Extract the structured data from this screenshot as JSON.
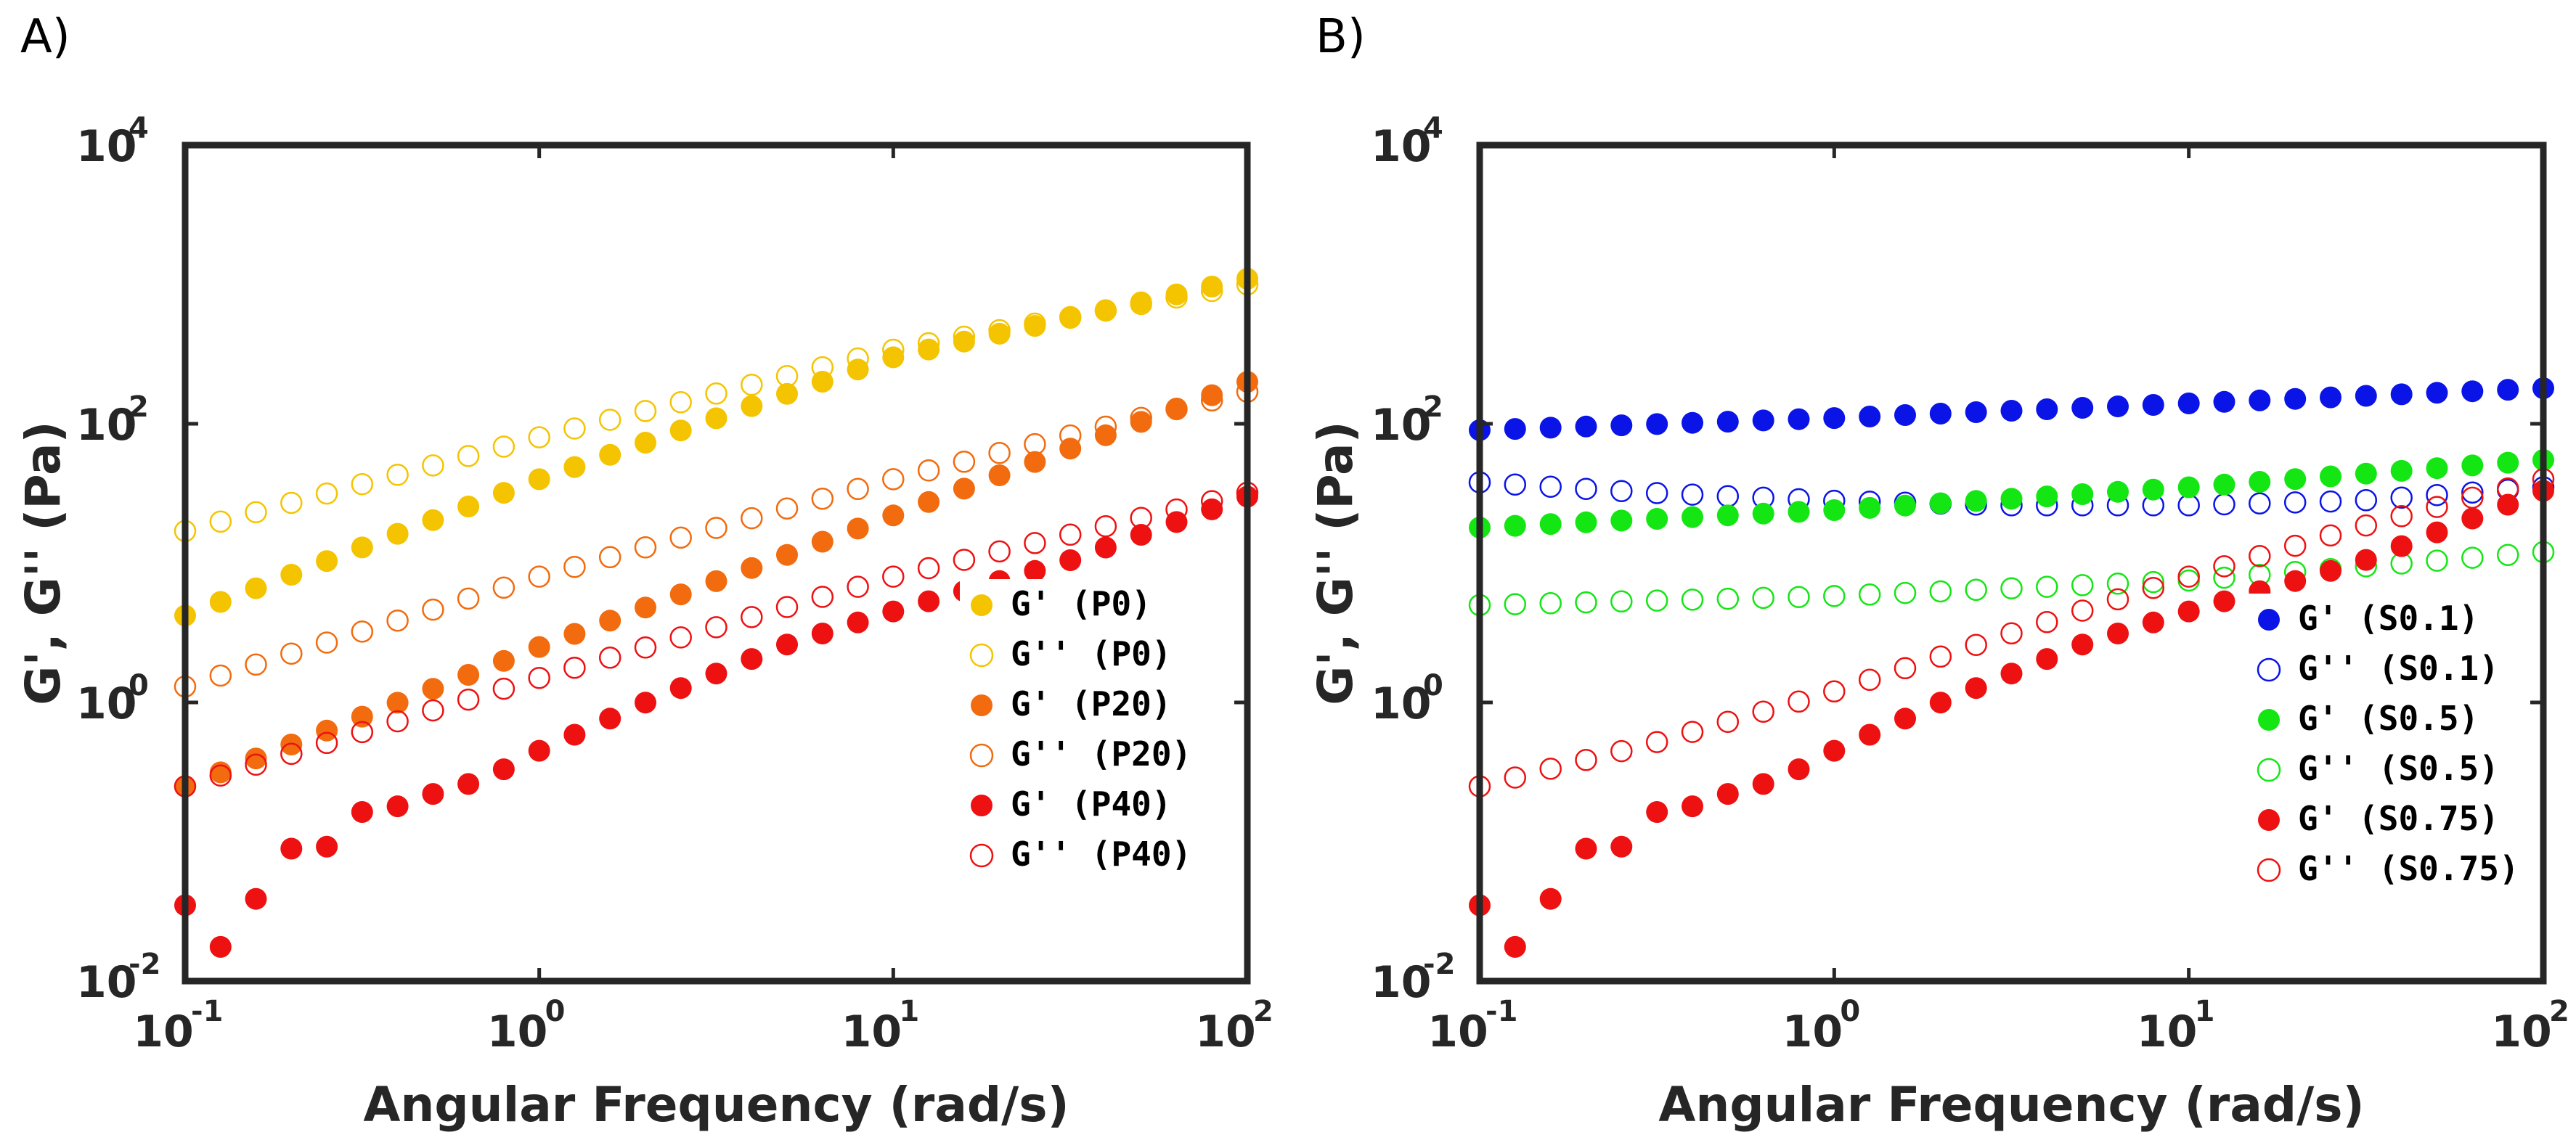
{
  "chart_data": [
    {
      "panel": "A)",
      "type": "scatter",
      "xscale": "log",
      "yscale": "log",
      "xlim": [
        0.1,
        100
      ],
      "ylim": [
        0.01,
        10000
      ],
      "xlabel": "Angular Frequency (rad/s)",
      "ylabel": "G', G'' (Pa)",
      "xticks": [
        {
          "base": "10",
          "exp": "-1",
          "value": 0.1
        },
        {
          "base": "10",
          "exp": "0",
          "value": 1
        },
        {
          "base": "10",
          "exp": "1",
          "value": 10
        },
        {
          "base": "10",
          "exp": "2",
          "value": 100
        }
      ],
      "yticks": [
        {
          "base": "10",
          "exp": "-2",
          "value": 0.01
        },
        {
          "base": "10",
          "exp": "0",
          "value": 1
        },
        {
          "base": "10",
          "exp": "2",
          "value": 100
        },
        {
          "base": "10",
          "exp": "4",
          "value": 10000
        }
      ],
      "legend_position": "bottom-right",
      "series": [
        {
          "name": "G' (P0)",
          "color": "#F5C400",
          "filled": true,
          "x": [
            0.1,
            1,
            10,
            100
          ],
          "y": [
            4.2,
            40,
            300,
            1100
          ]
        },
        {
          "name": "G'' (P0)",
          "color": "#F5C400",
          "filled": false,
          "x": [
            0.1,
            1,
            10,
            100
          ],
          "y": [
            17,
            80,
            340,
            1000
          ]
        },
        {
          "name": "G' (P20)",
          "color": "#F26B0F",
          "filled": true,
          "x": [
            0.1,
            1,
            10,
            100
          ],
          "y": [
            0.25,
            2.5,
            22,
            200
          ]
        },
        {
          "name": "G'' (P20)",
          "color": "#F26B0F",
          "filled": false,
          "x": [
            0.1,
            1,
            10,
            100
          ],
          "y": [
            1.3,
            8,
            40,
            170
          ]
        },
        {
          "name": "G' (P40)",
          "color": "#EE1111",
          "filled": true,
          "x": [
            0.1,
            0.12,
            0.14,
            0.17,
            0.2,
            0.24,
            0.3,
            0.4,
            0.5,
            0.7,
            1,
            2,
            5,
            10,
            30,
            100
          ],
          "y": [
            0.035,
            0.015,
            0.025,
            0.05,
            0.09,
            0.08,
            0.16,
            0.18,
            0.22,
            0.28,
            0.45,
            1.0,
            2.6,
            4.5,
            10,
            30
          ]
        },
        {
          "name": "G'' (P40)",
          "color": "#EE1111",
          "filled": false,
          "x": [
            0.1,
            1,
            10,
            100
          ],
          "y": [
            0.25,
            1.5,
            8,
            32
          ]
        }
      ]
    },
    {
      "panel": "B)",
      "type": "scatter",
      "xscale": "log",
      "yscale": "log",
      "xlim": [
        0.1,
        100
      ],
      "ylim": [
        0.01,
        10000
      ],
      "xlabel": "Angular Frequency (rad/s)",
      "ylabel": "G', G'' (Pa)",
      "xticks": [
        {
          "base": "10",
          "exp": "-1",
          "value": 0.1
        },
        {
          "base": "10",
          "exp": "0",
          "value": 1
        },
        {
          "base": "10",
          "exp": "1",
          "value": 10
        },
        {
          "base": "10",
          "exp": "2",
          "value": 100
        }
      ],
      "yticks": [
        {
          "base": "10",
          "exp": "-2",
          "value": 0.01
        },
        {
          "base": "10",
          "exp": "0",
          "value": 1
        },
        {
          "base": "10",
          "exp": "2",
          "value": 100
        },
        {
          "base": "10",
          "exp": "4",
          "value": 10000
        }
      ],
      "legend_position": "bottom-right",
      "series": [
        {
          "name": "G' (S0.1)",
          "color": "#0A14E6",
          "filled": true,
          "x": [
            0.1,
            1,
            10,
            100
          ],
          "y": [
            90,
            110,
            140,
            180
          ]
        },
        {
          "name": "G'' (S0.1)",
          "color": "#0A14E6",
          "filled": false,
          "x": [
            0.1,
            0.3,
            1,
            3,
            10,
            30,
            100
          ],
          "y": [
            38,
            32,
            28,
            26,
            26,
            28,
            35
          ]
        },
        {
          "name": "G' (S0.5)",
          "color": "#14E614",
          "filled": true,
          "x": [
            0.1,
            1,
            10,
            100
          ],
          "y": [
            18,
            24,
            35,
            55
          ]
        },
        {
          "name": "G'' (S0.5)",
          "color": "#14E614",
          "filled": false,
          "x": [
            0.1,
            1,
            10,
            100
          ],
          "y": [
            5,
            5.8,
            7.5,
            12
          ]
        },
        {
          "name": "G' (S0.75)",
          "color": "#EE1111",
          "filled": true,
          "x": [
            0.1,
            0.12,
            0.14,
            0.17,
            0.2,
            0.24,
            0.3,
            0.4,
            0.5,
            0.7,
            1,
            2,
            5,
            10,
            30,
            100
          ],
          "y": [
            0.035,
            0.015,
            0.025,
            0.05,
            0.09,
            0.08,
            0.16,
            0.18,
            0.22,
            0.28,
            0.45,
            1.0,
            2.6,
            4.5,
            10,
            33
          ]
        },
        {
          "name": "G'' (S0.75)",
          "color": "#EE1111",
          "filled": false,
          "x": [
            0.1,
            0.3,
            1,
            3,
            10,
            30,
            100
          ],
          "y": [
            0.25,
            0.5,
            1.2,
            3.0,
            8,
            18,
            40
          ]
        }
      ]
    }
  ]
}
